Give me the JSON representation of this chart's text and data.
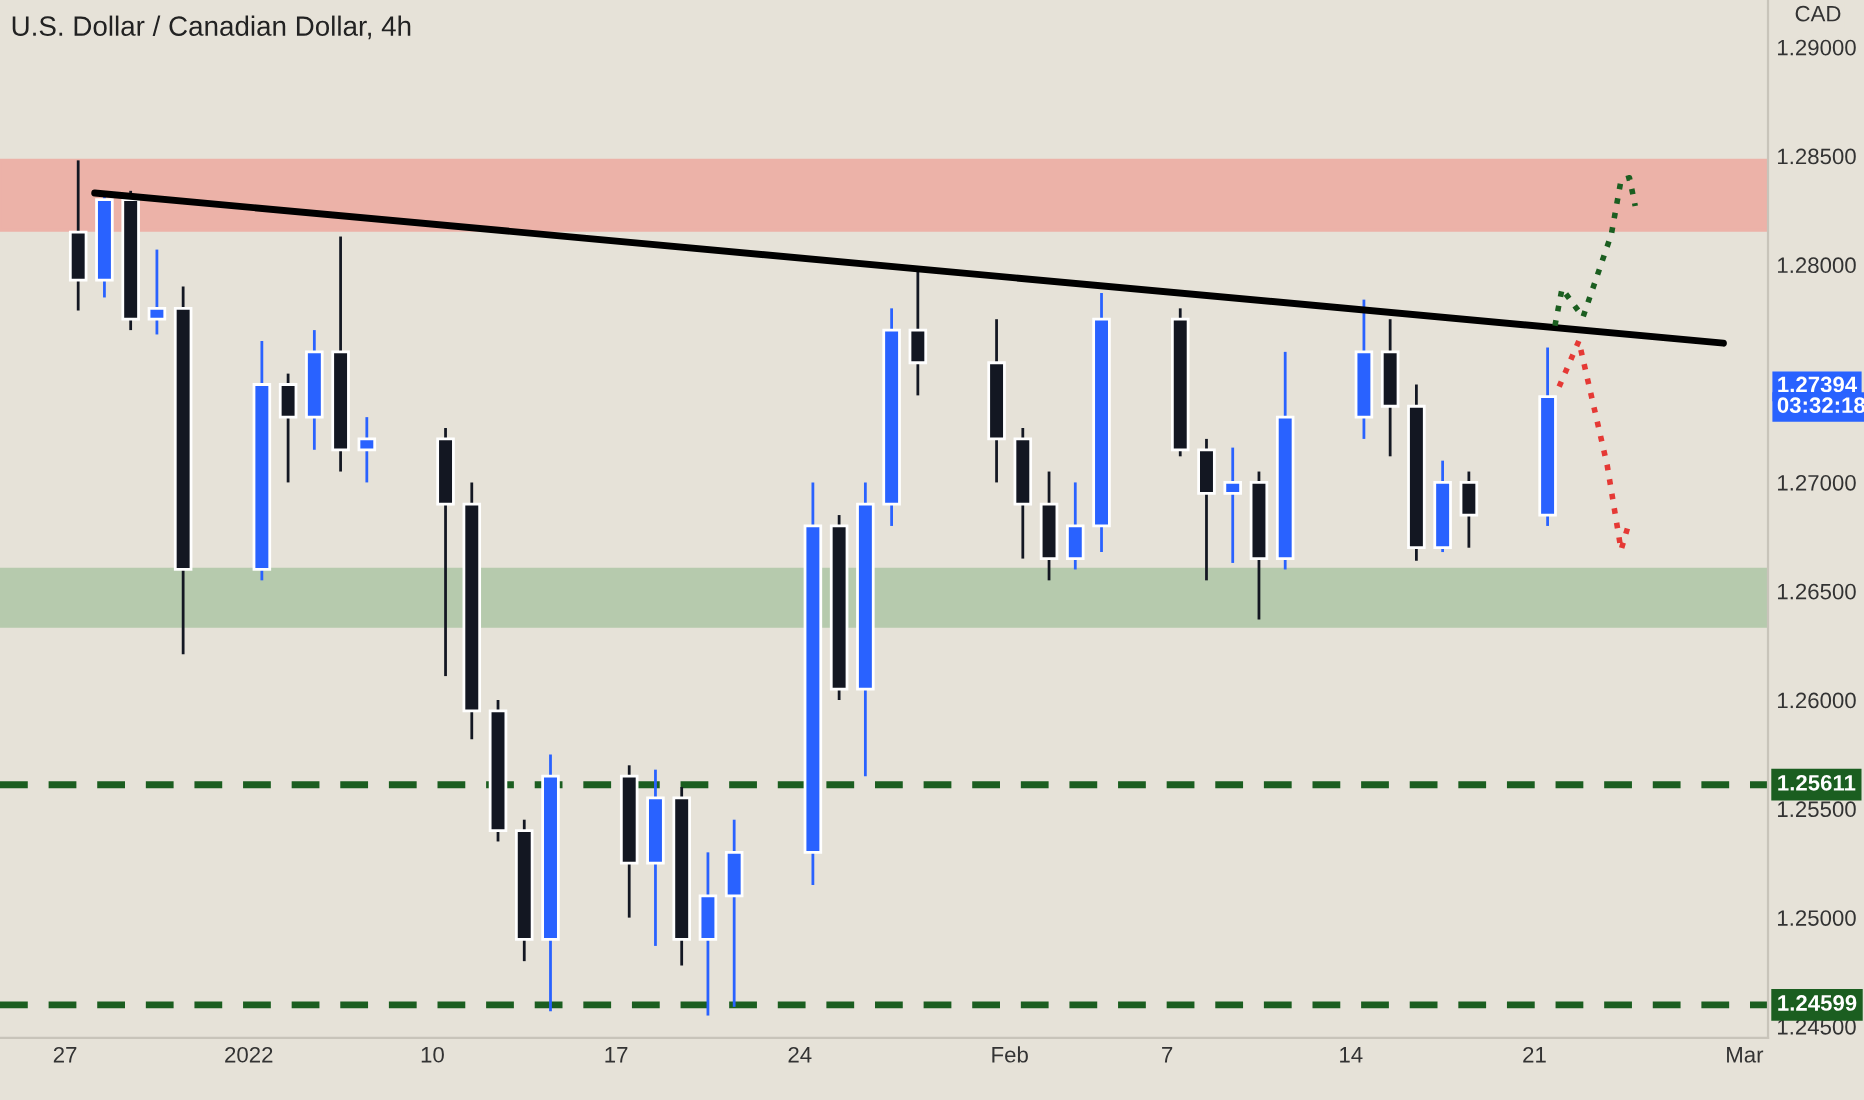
{
  "chart_data": {
    "type": "candlestick",
    "title": "U.S. Dollar / Canadian Dollar, 4h",
    "ylabel": "CAD",
    "x": [
      "2021-12-27T12:00",
      "2021-12-28T12:00",
      "2021-12-29T12:00",
      "2021-12-30T12:00",
      "2021-12-31T12:00",
      "2022-01-03T12:00",
      "2022-01-04T12:00",
      "2022-01-05T12:00",
      "2022-01-06T12:00",
      "2022-01-07T12:00",
      "2022-01-10T12:00",
      "2022-01-11T12:00",
      "2022-01-12T12:00",
      "2022-01-13T12:00",
      "2022-01-14T12:00",
      "2022-01-17T12:00",
      "2022-01-18T12:00",
      "2022-01-19T12:00",
      "2022-01-20T12:00",
      "2022-01-21T12:00",
      "2022-01-24T12:00",
      "2022-01-25T12:00",
      "2022-01-26T12:00",
      "2022-01-27T12:00",
      "2022-01-28T12:00",
      "2022-01-31T12:00",
      "2022-02-01T12:00",
      "2022-02-02T12:00",
      "2022-02-03T12:00",
      "2022-02-04T12:00",
      "2022-02-07T12:00",
      "2022-02-08T12:00",
      "2022-02-09T12:00",
      "2022-02-10T12:00",
      "2022-02-11T12:00",
      "2022-02-14T12:00",
      "2022-02-15T12:00",
      "2022-02-16T12:00",
      "2022-02-17T12:00",
      "2022-02-18T12:00",
      "2022-02-21T12:00"
    ],
    "ohlc": [
      [
        1.2815,
        1.2848,
        1.2779,
        1.2793
      ],
      [
        1.2793,
        1.2832,
        1.2785,
        1.283
      ],
      [
        1.283,
        1.2834,
        1.277,
        1.2775
      ],
      [
        1.2775,
        1.2807,
        1.2768,
        1.278
      ],
      [
        1.278,
        1.279,
        1.2621,
        1.266
      ],
      [
        1.266,
        1.2765,
        1.2655,
        1.2745
      ],
      [
        1.2745,
        1.275,
        1.27,
        1.273
      ],
      [
        1.273,
        1.277,
        1.2715,
        1.276
      ],
      [
        1.276,
        1.2813,
        1.2705,
        1.2715
      ],
      [
        1.2715,
        1.273,
        1.27,
        1.272
      ],
      [
        1.272,
        1.2725,
        1.2611,
        1.269
      ],
      [
        1.269,
        1.27,
        1.2582,
        1.2595
      ],
      [
        1.2595,
        1.26,
        1.2535,
        1.254
      ],
      [
        1.254,
        1.2545,
        1.248,
        1.249
      ],
      [
        1.249,
        1.2575,
        1.2457,
        1.2565
      ],
      [
        1.2565,
        1.257,
        1.25,
        1.2525
      ],
      [
        1.2525,
        1.2568,
        1.2487,
        1.2555
      ],
      [
        1.2555,
        1.256,
        1.2478,
        1.249
      ],
      [
        1.249,
        1.253,
        1.2455,
        1.251
      ],
      [
        1.251,
        1.2545,
        1.2459,
        1.253
      ],
      [
        1.253,
        1.27,
        1.2515,
        1.268
      ],
      [
        1.268,
        1.2685,
        1.26,
        1.2605
      ],
      [
        1.2605,
        1.27,
        1.2565,
        1.269
      ],
      [
        1.269,
        1.278,
        1.268,
        1.277
      ],
      [
        1.277,
        1.2797,
        1.274,
        1.2755
      ],
      [
        1.2755,
        1.2775,
        1.27,
        1.272
      ],
      [
        1.272,
        1.2725,
        1.2665,
        1.269
      ],
      [
        1.269,
        1.2705,
        1.2655,
        1.2665
      ],
      [
        1.2665,
        1.27,
        1.266,
        1.268
      ],
      [
        1.268,
        1.2787,
        1.2668,
        1.2775
      ],
      [
        1.2775,
        1.278,
        1.2712,
        1.2715
      ],
      [
        1.2715,
        1.272,
        1.2655,
        1.2695
      ],
      [
        1.2695,
        1.2716,
        1.2663,
        1.27
      ],
      [
        1.27,
        1.2705,
        1.2637,
        1.2665
      ],
      [
        1.2665,
        1.276,
        1.266,
        1.273
      ],
      [
        1.273,
        1.2784,
        1.272,
        1.276
      ],
      [
        1.276,
        1.2775,
        1.2712,
        1.2735
      ],
      [
        1.2735,
        1.2745,
        1.2664,
        1.267
      ],
      [
        1.267,
        1.271,
        1.2668,
        1.27
      ],
      [
        1.27,
        1.2705,
        1.267,
        1.2685
      ],
      [
        1.2685,
        1.2762,
        1.268,
        1.27394
      ]
    ],
    "colors": [
      "#131722",
      "#2962ff",
      "#131722",
      "#2962ff",
      "#131722",
      "#2962ff",
      "#131722",
      "#2962ff",
      "#131722",
      "#2962ff",
      "#131722",
      "#131722",
      "#131722",
      "#131722",
      "#2962ff",
      "#131722",
      "#2962ff",
      "#131722",
      "#2962ff",
      "#2962ff",
      "#2962ff",
      "#131722",
      "#2962ff",
      "#2962ff",
      "#131722",
      "#131722",
      "#131722",
      "#131722",
      "#2962ff",
      "#2962ff",
      "#131722",
      "#131722",
      "#2962ff",
      "#131722",
      "#2962ff",
      "#2962ff",
      "#131722",
      "#131722",
      "#2962ff",
      "#131722",
      "#2962ff"
    ],
    "series": [
      {
        "type": "line",
        "color": "#000000",
        "line_style": "solid",
        "x": [
          "2021-12-28T03:07",
          "2022-02-28T04:48"
        ],
        "values": [
          1.2833,
          1.2764
        ]
      },
      {
        "type": "line",
        "color": "#1b5e20",
        "line_style": "dotted",
        "x": [
          "2022-02-21T18:43",
          "2022-02-22T01:12",
          "2022-02-22T20:24",
          "2022-02-23T22:19",
          "2022-02-24T07:12",
          "2022-02-24T14:53",
          "2022-02-24T20:10"
        ],
        "values": [
          1.2772,
          1.2789,
          1.2776,
          1.2814,
          1.2839,
          1.284,
          1.2827
        ]
      },
      {
        "type": "line",
        "color": "#e53935",
        "line_style": "dotted",
        "x": [
          "2022-02-21T22:34",
          "2022-02-22T16:34",
          "2022-02-23T18:29",
          "2022-02-24T07:12",
          "2022-02-24T13:41"
        ],
        "values": [
          1.2744,
          1.2765,
          1.2708,
          1.2669,
          1.268
        ]
      }
    ],
    "bands": [
      {
        "axis": "y",
        "from": 1.2816,
        "to": 1.2848,
        "color": "#f28b82"
      },
      {
        "axis": "y",
        "from": 1.2634,
        "to": 1.266,
        "color": "#8fb88a"
      }
    ],
    "ref_lines": [
      {
        "axis": "y",
        "value": 1.25611,
        "label": "1.25611",
        "color": "#1b5e20",
        "line_style": "dashed"
      },
      {
        "axis": "y",
        "value": 1.24599,
        "label": "1.24599",
        "color": "#1b5e20",
        "line_style": "dashed"
      }
    ],
    "annotations": [
      "1.27394",
      "03:32:18"
    ],
    "xlim": [
      "2021-12-24T12:29",
      "2022-03-01T21:36"
    ],
    "ylim": [
      1.24447,
      1.29217
    ],
    "xticks": [
      {
        "value": "2021-12-27",
        "label": "27"
      },
      {
        "value": "2022-01-03",
        "label": "2022"
      },
      {
        "value": "2022-01-10",
        "label": "10"
      },
      {
        "value": "2022-01-17",
        "label": "17"
      },
      {
        "value": "2022-01-24",
        "label": "24"
      },
      {
        "value": "2022-02-01",
        "label": "Feb"
      },
      {
        "value": "2022-02-07",
        "label": "7"
      },
      {
        "value": "2022-02-14",
        "label": "14"
      },
      {
        "value": "2022-02-21",
        "label": "21"
      },
      {
        "value": "2022-03-01",
        "label": "Mar"
      }
    ],
    "yticks": [
      {
        "value": 1.245,
        "label": "1.24500"
      },
      {
        "value": 1.25,
        "label": "1.25000"
      },
      {
        "value": 1.255,
        "label": "1.25500"
      },
      {
        "value": 1.26,
        "label": "1.26000"
      },
      {
        "value": 1.265,
        "label": "1.26500"
      },
      {
        "value": 1.27,
        "label": "1.27000"
      },
      {
        "value": 1.28,
        "label": "1.28000"
      },
      {
        "value": 1.285,
        "label": "1.28500"
      },
      {
        "value": 1.29,
        "label": "1.29000"
      }
    ],
    "grid": false,
    "legend": false
  }
}
